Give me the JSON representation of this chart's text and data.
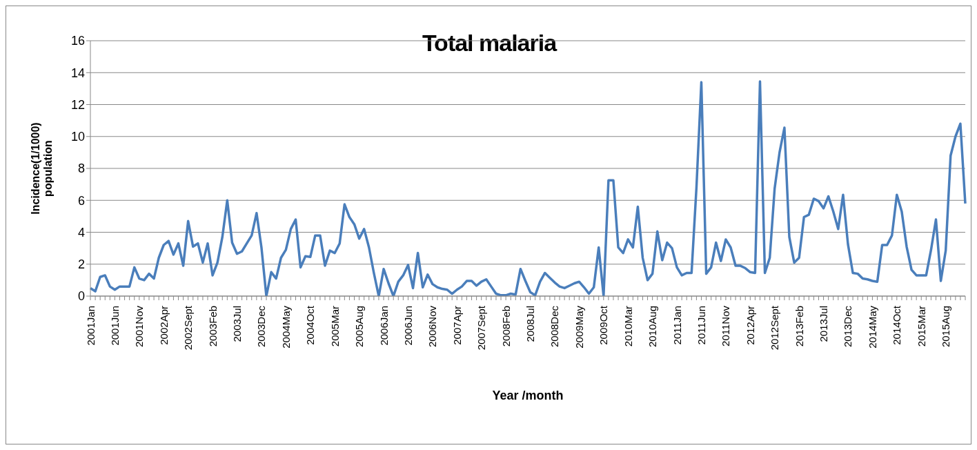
{
  "chart_data": {
    "type": "line",
    "title": "Total malaria",
    "xlabel": "Year /month",
    "ylabel": "Incidence(1/1000) population",
    "categories": [
      "2001Jan",
      null,
      null,
      null,
      null,
      "2001Jun",
      null,
      null,
      null,
      null,
      "2001Nov",
      null,
      null,
      null,
      null,
      "2002Apr",
      null,
      null,
      null,
      null,
      "2002Sept",
      null,
      null,
      null,
      null,
      "2003Feb",
      null,
      null,
      null,
      null,
      "2003Jul",
      null,
      null,
      null,
      null,
      "2003Dec",
      null,
      null,
      null,
      null,
      "2004May",
      null,
      null,
      null,
      null,
      "2004Oct",
      null,
      null,
      null,
      null,
      "2005Mar",
      null,
      null,
      null,
      null,
      "2005Aug",
      null,
      null,
      null,
      null,
      "2006Jan",
      null,
      null,
      null,
      null,
      "2006Jun",
      null,
      null,
      null,
      null,
      "2006Nov",
      null,
      null,
      null,
      null,
      "2007Apr",
      null,
      null,
      null,
      null,
      "2007Sept",
      null,
      null,
      null,
      null,
      "2008Feb",
      null,
      null,
      null,
      null,
      "2008Jul",
      null,
      null,
      null,
      null,
      "2008Dec",
      null,
      null,
      null,
      null,
      "2009May",
      null,
      null,
      null,
      null,
      "2009Oct",
      null,
      null,
      null,
      null,
      "2010Mar",
      null,
      null,
      null,
      null,
      "2010Aug",
      null,
      null,
      null,
      null,
      "2011Jan",
      null,
      null,
      null,
      null,
      "2011Jun",
      null,
      null,
      null,
      null,
      "2011Nov",
      null,
      null,
      null,
      null,
      "2012Apr",
      null,
      null,
      null,
      null,
      "2012Sept",
      null,
      null,
      null,
      null,
      "2013Feb",
      null,
      null,
      null,
      null,
      "2013Jul",
      null,
      null,
      null,
      null,
      "2013Dec",
      null,
      null,
      null,
      null,
      "2014May",
      null,
      null,
      null,
      null,
      "2014Oct",
      null,
      null,
      null,
      null,
      "2015Mar",
      null,
      null,
      null,
      null,
      "2015Aug",
      null,
      null,
      null,
      null
    ],
    "series": [
      {
        "color": "#4a7ebb",
        "values": [
          0.5,
          0.3,
          1.2,
          1.3,
          0.6,
          0.4,
          0.6,
          0.6,
          0.6,
          1.8,
          1.1,
          1.0,
          1.4,
          1.1,
          2.4,
          3.2,
          3.45,
          2.6,
          3.3,
          1.9,
          4.7,
          3.1,
          3.3,
          2.1,
          3.3,
          1.3,
          2.1,
          3.7,
          6.0,
          3.35,
          2.65,
          2.8,
          3.3,
          3.8,
          5.2,
          3.05,
          0,
          1.5,
          1.1,
          2.4,
          2.9,
          4.2,
          4.8,
          1.8,
          2.5,
          2.45,
          3.8,
          3.8,
          1.9,
          2.85,
          2.7,
          3.3,
          5.75,
          4.95,
          4.5,
          3.6,
          4.2,
          3.05,
          1.45,
          0,
          1.7,
          0.8,
          0,
          0.9,
          1.3,
          1.95,
          0.5,
          2.7,
          0.55,
          1.35,
          0.75,
          0.55,
          0.45,
          0.4,
          0.15,
          0.4,
          0.6,
          0.95,
          0.95,
          0.65,
          0.9,
          1.05,
          0.6,
          0.15,
          0.05,
          0.05,
          0.15,
          0.1,
          1.7,
          0.95,
          0.25,
          0.05,
          0.9,
          1.45,
          1.15,
          0.85,
          0.6,
          0.5,
          0.65,
          0.8,
          0.9,
          0.55,
          0.15,
          0.55,
          3.05,
          0,
          7.25,
          7.25,
          3.05,
          2.7,
          3.55,
          3.05,
          5.6,
          2.4,
          1.0,
          1.4,
          4.05,
          2.25,
          3.35,
          3.0,
          1.8,
          1.3,
          1.45,
          1.45,
          6.8,
          13.4,
          1.4,
          1.8,
          3.35,
          2.2,
          3.55,
          3.05,
          1.9,
          1.9,
          1.75,
          1.5,
          1.45,
          13.45,
          1.45,
          2.4,
          6.75,
          9.0,
          10.55,
          3.7,
          2.1,
          2.4,
          4.95,
          5.1,
          6.1,
          5.95,
          5.5,
          6.25,
          5.3,
          4.2,
          6.35,
          3.25,
          1.45,
          1.4,
          1.1,
          1.05,
          0.95,
          0.9,
          3.2,
          3.2,
          3.8,
          6.35,
          5.3,
          3.1,
          1.65,
          1.3,
          1.3,
          1.3,
          2.9,
          4.8,
          0.95,
          2.85,
          8.8,
          10.0,
          10.8,
          5.8
        ]
      }
    ],
    "ylim": [
      0,
      16
    ],
    "yticks": [
      0,
      2,
      4,
      6,
      8,
      10,
      12,
      14,
      16
    ],
    "grid": "y",
    "marker": "none",
    "line_style": "solid"
  }
}
